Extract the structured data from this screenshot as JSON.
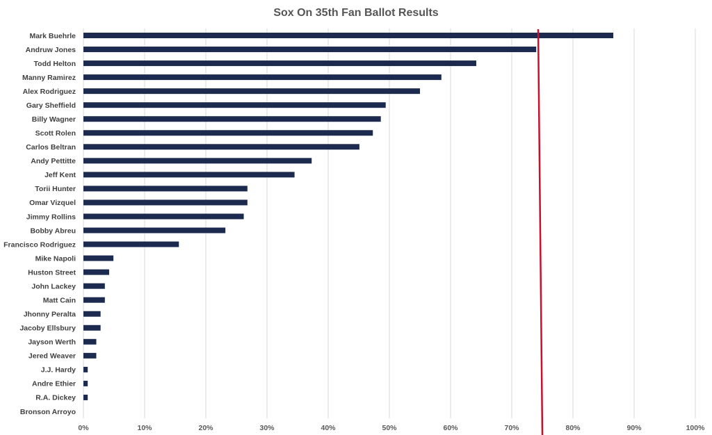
{
  "chart_data": {
    "type": "bar",
    "orientation": "horizontal",
    "title": "Sox On 35th Fan Ballot Results",
    "xlabel": "",
    "ylabel": "",
    "xlim": [
      0,
      1
    ],
    "x_ticks": [
      0,
      0.1,
      0.2,
      0.3,
      0.4,
      0.5,
      0.6,
      0.7,
      0.8,
      0.9,
      1.0
    ],
    "x_tick_labels": [
      "0%",
      "10%",
      "20%",
      "30%",
      "40%",
      "50%",
      "60%",
      "70%",
      "80%",
      "90%",
      "100%"
    ],
    "grid": true,
    "legend": "none",
    "categories": [
      "Mark Buehrle",
      "Andruw Jones",
      "Todd Helton",
      "Manny Ramirez",
      "Alex Rodriguez",
      "Gary Sheffield",
      "Billy Wagner",
      "Scott Rolen",
      "Carlos Beltran",
      "Andy Pettitte",
      "Jeff Kent",
      "Torii Hunter",
      "Omar Vizquel",
      "Jimmy Rollins",
      "Bobby Abreu",
      "Francisco Rodriguez",
      "Mike Napoli",
      "Huston Street",
      "John Lackey",
      "Matt Cain",
      "Jhonny Peralta",
      "Jacoby Ellsbury",
      "Jayson Werth",
      "Jered Weaver",
      "J.J. Hardy",
      "Andre Ethier",
      "R.A. Dickey",
      "Bronson Arroyo"
    ],
    "values": [
      0.866,
      0.74,
      0.642,
      0.585,
      0.55,
      0.494,
      0.486,
      0.473,
      0.451,
      0.373,
      0.345,
      0.268,
      0.268,
      0.262,
      0.232,
      0.156,
      0.049,
      0.042,
      0.035,
      0.035,
      0.028,
      0.028,
      0.021,
      0.021,
      0.007,
      0.007,
      0.007,
      0.0
    ],
    "reference_line": {
      "value": 0.75,
      "color": "#C8102E"
    },
    "colors": {
      "bar": "#1B2A4E",
      "grid": "#D9D9D9",
      "title": "#555555",
      "label": "#404040"
    }
  }
}
